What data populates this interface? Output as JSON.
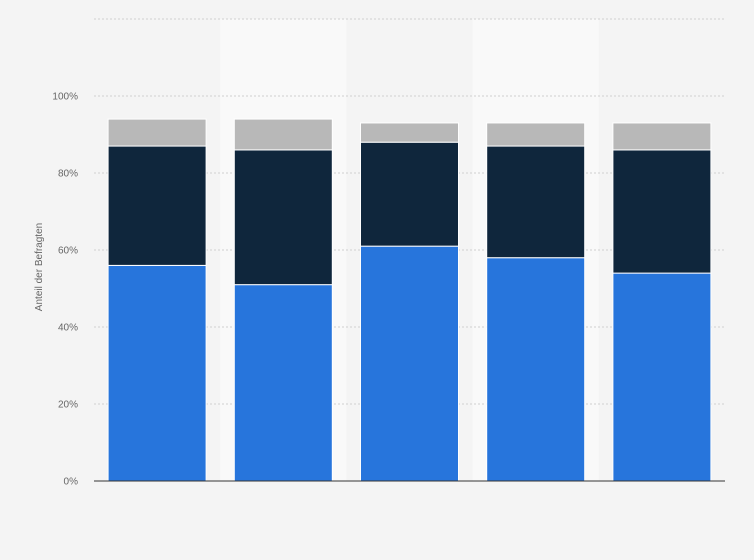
{
  "colors": {
    "background": "#f4f4f4",
    "band": "#f9f9f9",
    "grid": "#cfcfcf",
    "axis": "#333333",
    "separator": "#ffffff"
  },
  "chart_data": {
    "type": "bar",
    "stacked": true,
    "categories": [
      "",
      "",
      "",
      "",
      ""
    ],
    "series": [
      {
        "color": "#2775dc",
        "values": [
          56,
          51,
          61,
          58,
          54
        ]
      },
      {
        "color": "#0f263c",
        "values": [
          31,
          35,
          27,
          29,
          32
        ]
      },
      {
        "color": "#b8b8b8",
        "values": [
          7,
          8,
          5,
          6,
          7
        ]
      }
    ],
    "ylabel": "Anteil der Befragten",
    "ylim": [
      0,
      120
    ],
    "yticks": [
      0,
      20,
      40,
      60,
      80,
      100
    ],
    "ytick_labels": [
      "0%",
      "20%",
      "40%",
      "60%",
      "80%",
      "100%"
    ],
    "grid": true,
    "legend": "none"
  }
}
